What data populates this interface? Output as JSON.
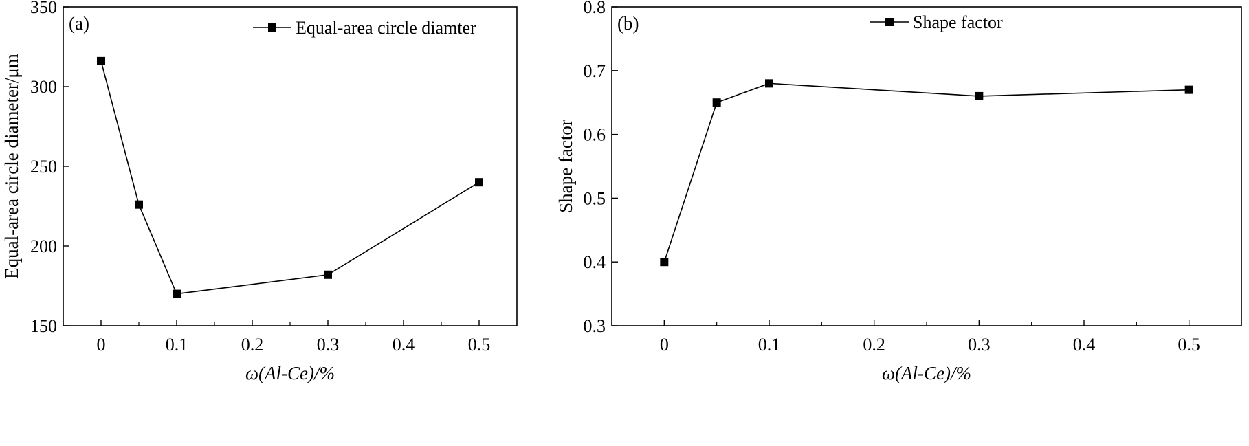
{
  "chart_data": [
    {
      "type": "line",
      "panel_label": "(a)",
      "xlabel": "ω(Al-Ce)/%",
      "ylabel": "Equal-area circle diameter/μm",
      "xlim": [
        -0.05,
        0.55
      ],
      "ylim": [
        150,
        350
      ],
      "xticks": [
        0,
        0.1,
        0.2,
        0.3,
        0.4,
        0.5
      ],
      "xtick_labels": [
        "0",
        "0.1",
        "0.2",
        "0.3",
        "0.4",
        "0.5"
      ],
      "yticks": [
        150,
        200,
        250,
        300,
        350
      ],
      "ytick_labels": [
        "150",
        "200",
        "250",
        "300",
        "350"
      ],
      "legend_position": "top-right",
      "grid": false,
      "series": [
        {
          "name": "Equal-area circle diamter",
          "marker": "square",
          "color": "#000000",
          "x": [
            0,
            0.05,
            0.1,
            0.3,
            0.5
          ],
          "y": [
            316,
            226,
            170,
            182,
            240
          ]
        }
      ]
    },
    {
      "type": "line",
      "panel_label": "(b)",
      "xlabel": "ω(Al-Ce)/%",
      "ylabel": "Shape factor",
      "xlim": [
        -0.05,
        0.55
      ],
      "ylim": [
        0.3,
        0.8
      ],
      "xticks": [
        0,
        0.1,
        0.2,
        0.3,
        0.4,
        0.5
      ],
      "xtick_labels": [
        "0",
        "0.1",
        "0.2",
        "0.3",
        "0.4",
        "0.5"
      ],
      "yticks": [
        0.3,
        0.4,
        0.5,
        0.6,
        0.7,
        0.8
      ],
      "ytick_labels": [
        "0.3",
        "0.4",
        "0.5",
        "0.6",
        "0.7",
        "0.8"
      ],
      "legend_position": "top-right",
      "grid": false,
      "series": [
        {
          "name": "Shape factor",
          "marker": "square",
          "color": "#000000",
          "x": [
            0,
            0.05,
            0.1,
            0.3,
            0.5
          ],
          "y": [
            0.4,
            0.65,
            0.68,
            0.66,
            0.67
          ]
        }
      ]
    }
  ]
}
